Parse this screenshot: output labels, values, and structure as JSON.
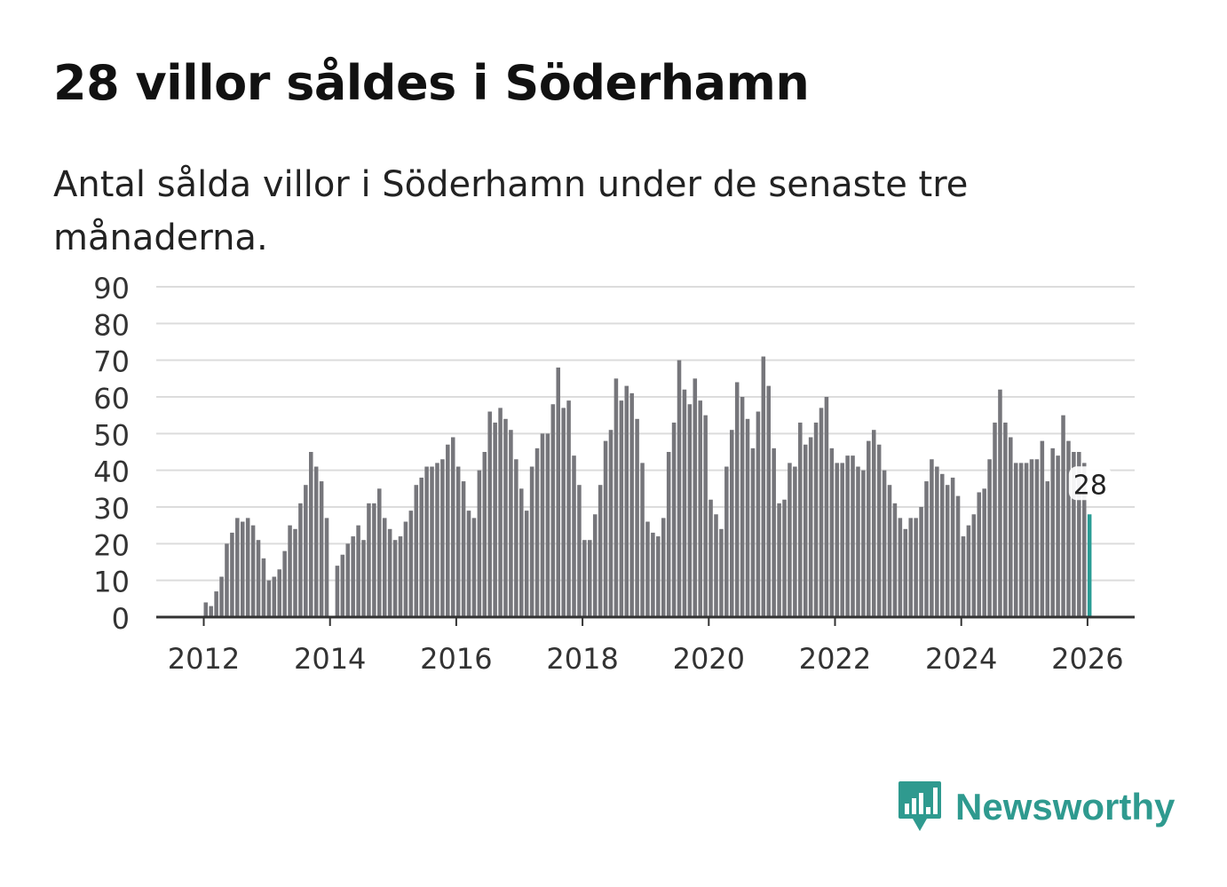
{
  "title": "28 villor såldes i Söderhamn",
  "subtitle": "Antal sålda villor i Söderhamn under de senaste tre månaderna.",
  "brand": {
    "name": "Newsworthy",
    "icon": "bar-chart-speech-bubble-icon",
    "color": "#2f9a8f"
  },
  "colors": {
    "bar": "#76767b",
    "highlight": "#2a9d95",
    "grid": "#dcdcdc",
    "axis": "#333333"
  },
  "chart_data": {
    "type": "bar",
    "title": "28 villor såldes i Söderhamn",
    "xlabel": "",
    "ylabel": "",
    "ylim": [
      0,
      90
    ],
    "yticks": [
      "0",
      "10",
      "20",
      "30",
      "40",
      "50",
      "60",
      "70",
      "80",
      "90"
    ],
    "xticks": [
      "2012",
      "2014",
      "2016",
      "2018",
      "2020",
      "2022",
      "2024",
      "2026"
    ],
    "x_start": "2012-01",
    "highlight_label": "28",
    "grid": true,
    "values": [
      4,
      3,
      7,
      11,
      20,
      23,
      27,
      26,
      27,
      25,
      21,
      16,
      10,
      11,
      13,
      18,
      25,
      24,
      31,
      36,
      45,
      41,
      37,
      27,
      null,
      14,
      17,
      20,
      22,
      25,
      21,
      31,
      31,
      35,
      27,
      24,
      21,
      22,
      26,
      29,
      36,
      38,
      41,
      41,
      42,
      43,
      47,
      49,
      41,
      37,
      29,
      27,
      40,
      45,
      56,
      53,
      57,
      54,
      51,
      43,
      35,
      29,
      41,
      46,
      50,
      50,
      58,
      68,
      57,
      59,
      44,
      36,
      21,
      21,
      28,
      36,
      48,
      51,
      65,
      59,
      63,
      61,
      54,
      42,
      26,
      23,
      22,
      27,
      45,
      53,
      70,
      62,
      58,
      65,
      59,
      55,
      32,
      28,
      24,
      41,
      51,
      64,
      60,
      54,
      46,
      56,
      71,
      63,
      46,
      31,
      32,
      42,
      41,
      53,
      47,
      49,
      53,
      57,
      60,
      46,
      42,
      42,
      44,
      44,
      41,
      40,
      48,
      51,
      47,
      40,
      36,
      31,
      27,
      24,
      27,
      27,
      30,
      37,
      43,
      41,
      39,
      36,
      38,
      33,
      22,
      25,
      28,
      34,
      35,
      43,
      53,
      62,
      53,
      49,
      42,
      42,
      42,
      43,
      43,
      48,
      37,
      46,
      44,
      55,
      48,
      45,
      45,
      42,
      28
    ]
  }
}
